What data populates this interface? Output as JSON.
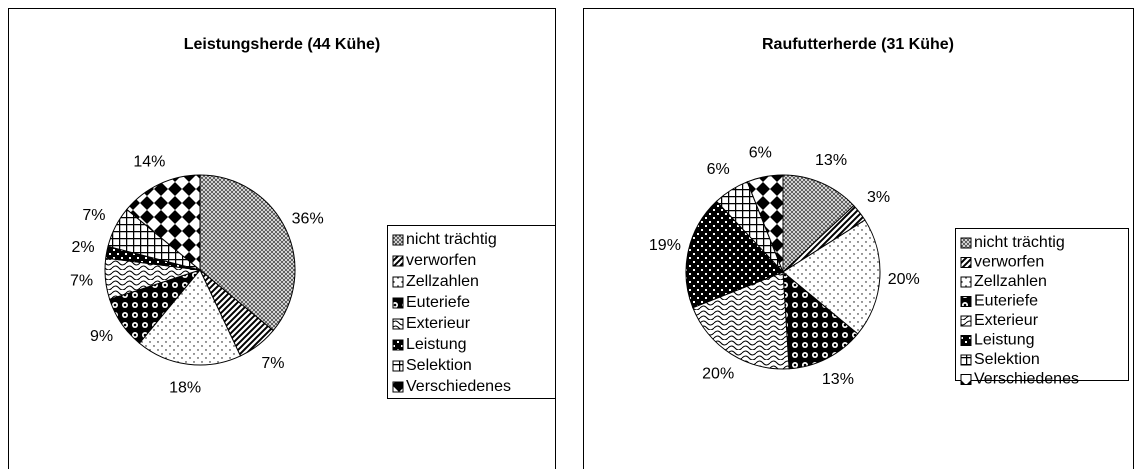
{
  "chart_data": [
    {
      "type": "pie",
      "title": "Leistungsherde (44 Kühe)",
      "categories": [
        "nicht trächtig",
        "verworfen",
        "Zellzahlen",
        "Euteriefe",
        "Exterieur",
        "Leistung",
        "Selektion",
        "Verschiedenes"
      ],
      "values": [
        36,
        7,
        18,
        9,
        7,
        2,
        7,
        14
      ],
      "value_labels": [
        "36%",
        "7%",
        "18%",
        "9%",
        "7%",
        "2%",
        "7%",
        "14%"
      ]
    },
    {
      "type": "pie",
      "title": "Raufutterherde (31 Kühe)",
      "categories": [
        "nicht trächtig",
        "verworfen",
        "Zellzahlen",
        "Euteriefe",
        "Exterieur",
        "Leistung",
        "Selektion",
        "Verschiedenes"
      ],
      "values": [
        13,
        3,
        20,
        13,
        20,
        19,
        6,
        6
      ],
      "value_labels": [
        "13%",
        "3%",
        "20%",
        "13%",
        "20%",
        "19%",
        "6%",
        "6%"
      ]
    }
  ]
}
